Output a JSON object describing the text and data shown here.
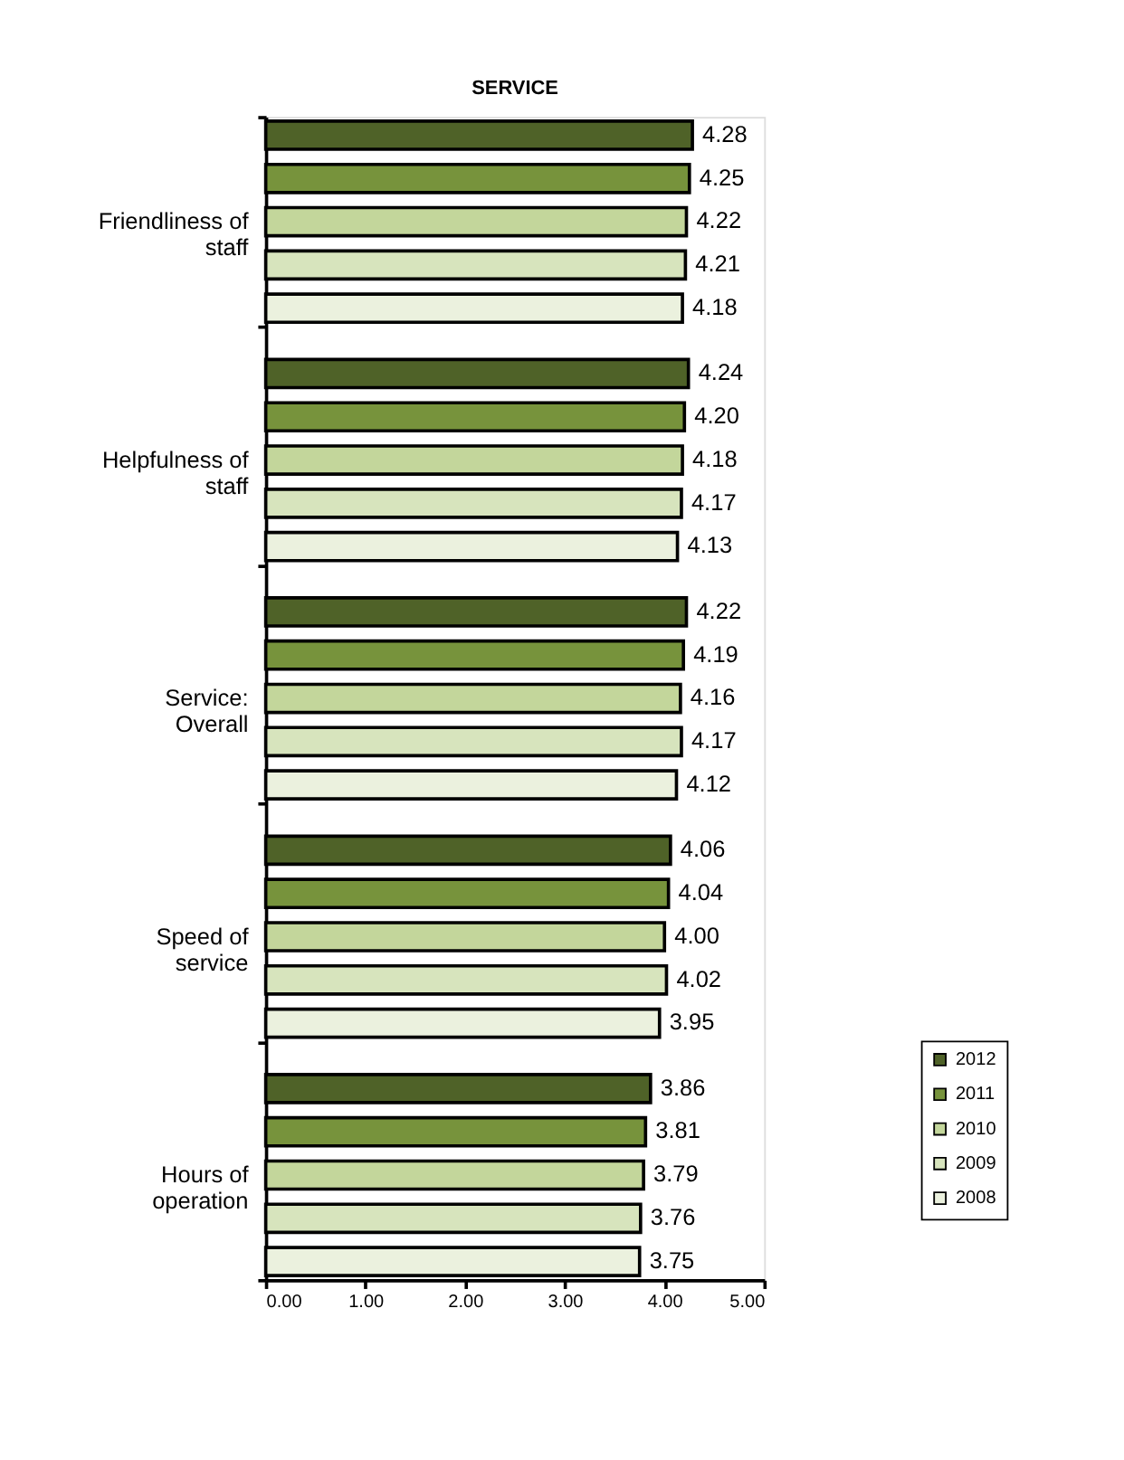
{
  "chart_data": {
    "type": "bar",
    "orientation": "horizontal",
    "title": "SERVICE",
    "categories": [
      "Friendliness of staff",
      "Helpfulness of staff",
      "Service: Overall",
      "Speed of service",
      "Hours of operation"
    ],
    "series": [
      {
        "name": "2012",
        "color": "#4f6228",
        "values": [
          4.28,
          4.24,
          4.22,
          4.06,
          3.86
        ],
        "value_labels": [
          "4.28",
          "4.24",
          "4.22",
          "4.06",
          "3.86"
        ]
      },
      {
        "name": "2011",
        "color": "#77933c",
        "values": [
          4.25,
          4.2,
          4.19,
          4.04,
          3.81
        ],
        "value_labels": [
          "4.25",
          "4.20",
          "4.19",
          "4.04",
          "3.81"
        ]
      },
      {
        "name": "2010",
        "color": "#c3d69b",
        "values": [
          4.22,
          4.18,
          4.16,
          4.0,
          3.79
        ],
        "value_labels": [
          "4.22",
          "4.18",
          "4.16",
          "4.00",
          "3.79"
        ]
      },
      {
        "name": "2009",
        "color": "#d7e4bd",
        "values": [
          4.21,
          4.17,
          4.17,
          4.02,
          3.76
        ],
        "value_labels": [
          "4.21",
          "4.17",
          "4.17",
          "4.02",
          "3.76"
        ]
      },
      {
        "name": "2008",
        "color": "#ebf1de",
        "values": [
          4.18,
          4.13,
          4.12,
          3.95,
          3.75
        ],
        "value_labels": [
          "4.18",
          "4.13",
          "4.12",
          "3.95",
          "3.75"
        ]
      }
    ],
    "xlim": [
      0,
      5
    ],
    "xticks": [
      {
        "value": 0,
        "label": "0.00"
      },
      {
        "value": 1,
        "label": "1.00"
      },
      {
        "value": 2,
        "label": "2.00"
      },
      {
        "value": 3,
        "label": "3.00"
      },
      {
        "value": 4,
        "label": "4.00"
      },
      {
        "value": 5,
        "label": "5.00"
      }
    ],
    "legend": "bottom right",
    "grid": false
  }
}
